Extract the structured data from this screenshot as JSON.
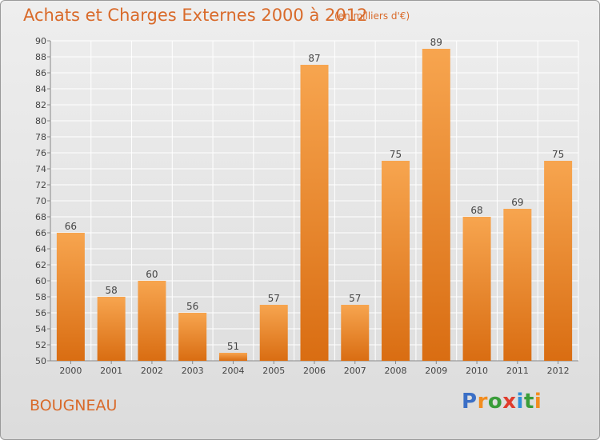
{
  "header": {
    "title": "Achats et Charges Externes 2000 à 2012",
    "subtitle": "(en milliers d'€)"
  },
  "footer": {
    "commune": "BOUGNEAU",
    "logo_letters": [
      "P",
      "r",
      "o",
      "x",
      "i",
      "t",
      "i"
    ]
  },
  "colors": {
    "title": "#d96a2a",
    "bar_top": "#f7a54f",
    "bar_bottom": "#d96d12",
    "grid": "#ffffff",
    "background": "#e6e6e6"
  },
  "chart_data": {
    "type": "bar",
    "title": "Achats et Charges Externes 2000 à 2012",
    "subtitle": "(en milliers d'€)",
    "categories": [
      "2000",
      "2001",
      "2002",
      "2003",
      "2004",
      "2005",
      "2006",
      "2007",
      "2008",
      "2009",
      "2010",
      "2011",
      "2012"
    ],
    "values": [
      66,
      58,
      60,
      56,
      51,
      57,
      87,
      57,
      75,
      89,
      68,
      69,
      75
    ],
    "ylim": [
      50,
      90
    ],
    "yticks": [
      50,
      52,
      54,
      56,
      58,
      60,
      62,
      64,
      66,
      68,
      70,
      72,
      74,
      76,
      78,
      80,
      82,
      84,
      86,
      88,
      90
    ],
    "grid": true,
    "data_labels": true
  }
}
